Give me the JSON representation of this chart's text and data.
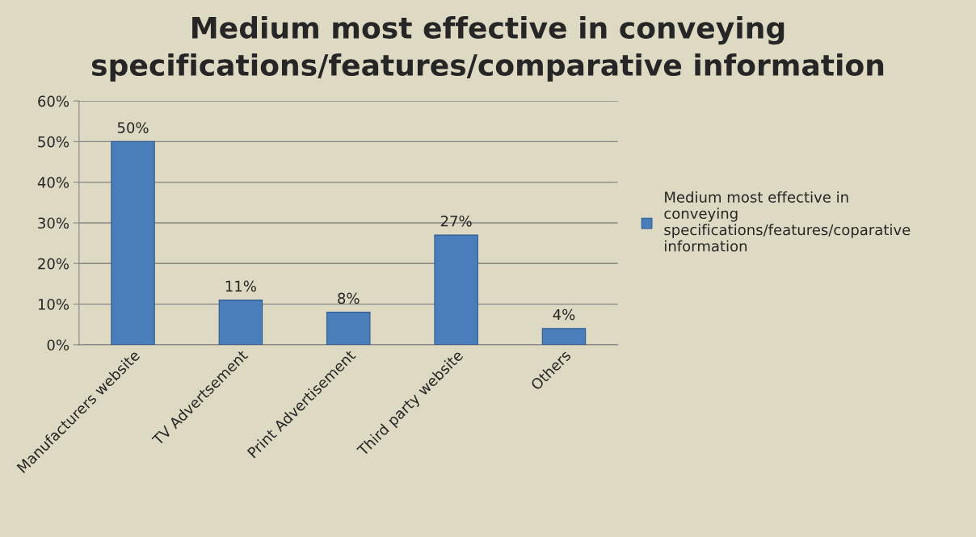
{
  "chart_data": {
    "type": "bar",
    "title": "Medium most effective in conveying specifications/features/comparative information",
    "categories": [
      "Manufacturers website",
      "TV Advertsement",
      "Print Advertisement",
      "Third party website",
      "Others"
    ],
    "series": [
      {
        "name": "Medium most effective in\nconveying\nspecifications/features/coparative\ninformation",
        "color": "#4a7ebb",
        "values": [
          50,
          11,
          8,
          27,
          4
        ],
        "value_labels": [
          "50%",
          "11%",
          "8%",
          "27%",
          "4%"
        ]
      }
    ],
    "ylim": [
      0,
      60
    ],
    "yticks": [
      {
        "value": 0,
        "label": "0%"
      },
      {
        "value": 10,
        "label": "10%"
      },
      {
        "value": 20,
        "label": "20%"
      },
      {
        "value": 30,
        "label": "30%"
      },
      {
        "value": 40,
        "label": "40%"
      },
      {
        "value": 50,
        "label": "50%"
      },
      {
        "value": 60,
        "label": "60%"
      }
    ],
    "grid": "y",
    "legend": "right"
  }
}
